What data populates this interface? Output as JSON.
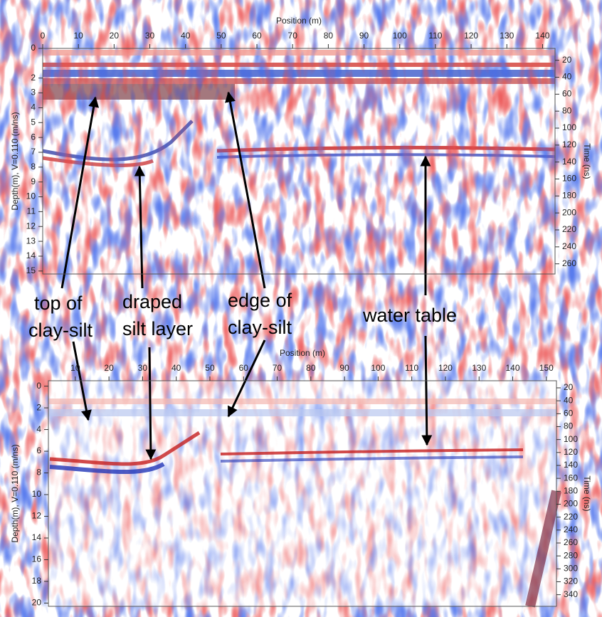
{
  "chart_data": [
    {
      "type": "radargram",
      "xlabel": "Position (m)",
      "ylabel": "Depth(m), V=0.110 (m/ns)",
      "y2label": "Time (ns)",
      "xlim": [
        0,
        143.5
      ],
      "xticks": [
        0,
        10,
        20,
        30,
        40,
        50,
        60,
        70,
        80,
        90,
        100,
        110,
        120,
        130,
        140
      ],
      "ylim": [
        0,
        15.2
      ],
      "yticks": [
        0,
        2,
        3,
        4,
        5,
        6,
        7,
        8,
        9,
        10,
        11,
        12,
        13,
        14,
        15
      ],
      "y2lim": [
        6,
        272
      ],
      "y2ticks": [
        20,
        40,
        60,
        80,
        100,
        120,
        140,
        160,
        180,
        200,
        220,
        240,
        260
      ]
    },
    {
      "type": "radargram",
      "xlabel": "Position (m)",
      "ylabel": "Depth(m), V=0.110 (m/ns)",
      "y2label": "Time (ns)",
      "xlim": [
        2,
        153
      ],
      "xticks": [
        10,
        20,
        30,
        40,
        50,
        60,
        70,
        80,
        90,
        100,
        110,
        120,
        130,
        140,
        150
      ],
      "ylim": [
        -0.5,
        20.3
      ],
      "yticks": [
        0,
        2,
        4,
        6,
        8,
        10,
        12,
        14,
        16,
        18,
        20
      ],
      "y2lim": [
        9,
        358
      ],
      "y2ticks": [
        20,
        40,
        60,
        80,
        100,
        120,
        140,
        160,
        180,
        200,
        220,
        240,
        260,
        280,
        300,
        320,
        340
      ]
    }
  ],
  "annotations": [
    {
      "lines": [
        "top of",
        "clay-silt"
      ]
    },
    {
      "lines": [
        "draped",
        "silt layer"
      ]
    },
    {
      "lines": [
        "edge of",
        "clay-silt"
      ]
    },
    {
      "lines": [
        "water table"
      ]
    }
  ]
}
